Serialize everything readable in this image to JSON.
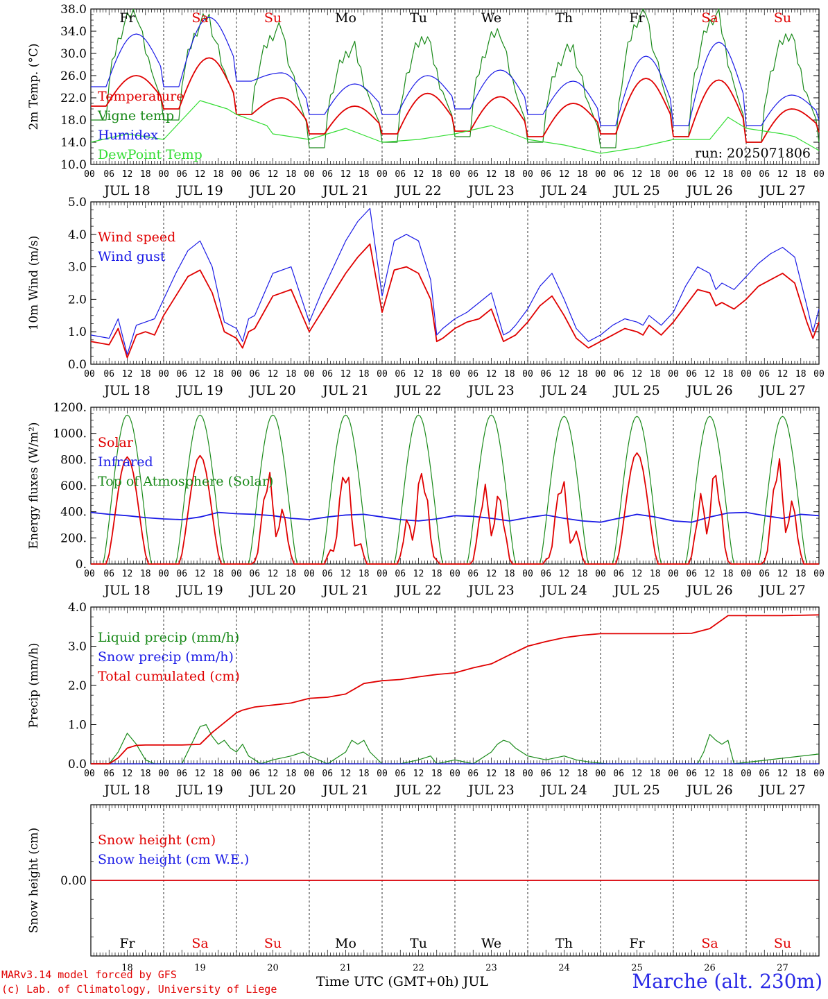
{
  "colors": {
    "red": "#e00000",
    "green": "#1a8a1a",
    "blue": "#1a1ae6",
    "lime": "#33dd33",
    "weekend": "#e00000",
    "weekday": "#000000",
    "frame": "#000000"
  },
  "days": [
    {
      "name": "Fr",
      "date": "JUL 18",
      "num": "18",
      "weekend": false
    },
    {
      "name": "Sa",
      "date": "JUL 19",
      "num": "19",
      "weekend": true
    },
    {
      "name": "Su",
      "date": "JUL 20",
      "num": "20",
      "weekend": true
    },
    {
      "name": "Mo",
      "date": "JUL 21",
      "num": "21",
      "weekend": false
    },
    {
      "name": "Tu",
      "date": "JUL 22",
      "num": "22",
      "weekend": false
    },
    {
      "name": "We",
      "date": "JUL 23",
      "num": "23",
      "weekend": false
    },
    {
      "name": "Th",
      "date": "JUL 24",
      "num": "24",
      "weekend": false
    },
    {
      "name": "Fr",
      "date": "JUL 25",
      "num": "25",
      "weekend": false
    },
    {
      "name": "Sa",
      "date": "JUL 26",
      "num": "26",
      "weekend": true
    },
    {
      "name": "Su",
      "date": "JUL 27",
      "num": "27",
      "weekend": true
    }
  ],
  "hour_labels": [
    "00",
    "06",
    "12",
    "18"
  ],
  "hour_label_last": "00",
  "footer": {
    "credit_line1": "MARv3.14 model forced by GFS",
    "credit_line2": "(c) Lab. of Climatology, University of Liege",
    "xaxis_title": "Time UTC (GMT+0h) JUL",
    "station": "Marche (alt. 230m)"
  },
  "chart_data": [
    {
      "type": "line",
      "ylabel": "2m Temp. (°C)",
      "yticks": [
        "38.0",
        "34.0",
        "30.0",
        "26.0",
        "22.0",
        "18.0",
        "14.0",
        "10.0"
      ],
      "ylim": [
        10,
        38
      ],
      "annotation": "run: 2025071806",
      "legend": [
        {
          "label": "Temperature",
          "color": "red"
        },
        {
          "label": "Vigne temp",
          "color": "green"
        },
        {
          "label": "Humidex",
          "color": "blue"
        },
        {
          "label": "DewPoint Temp",
          "color": "lime"
        }
      ],
      "series": [
        {
          "name": "Vigne temp",
          "color": "green",
          "kind": "daily",
          "profile": "sharp",
          "days": [
            [
              18,
              37.5
            ],
            [
              18,
              36.5
            ],
            [
              19,
              34.5
            ],
            [
              13,
              31
            ],
            [
              14,
              33
            ],
            [
              15,
              34
            ],
            [
              14,
              31
            ],
            [
              13,
              37.5
            ],
            [
              15,
              37
            ],
            [
              14,
              33.5
            ]
          ],
          "end": 14
        },
        {
          "name": "Humidex",
          "color": "blue",
          "kind": "daily",
          "profile": "smooth",
          "days": [
            [
              24,
              33.5
            ],
            [
              24,
              36.5
            ],
            [
              25,
              26.5
            ],
            [
              19,
              24.5
            ],
            [
              19,
              26
            ],
            [
              20,
              27
            ],
            [
              19,
              25
            ],
            [
              17,
              29.5
            ],
            [
              17,
              32
            ],
            [
              17,
              22.5
            ]
          ],
          "end": 18
        },
        {
          "name": "Temperature",
          "color": "red",
          "kind": "daily",
          "profile": "smooth",
          "days": [
            [
              20.5,
              26
            ],
            [
              20,
              29.2
            ],
            [
              19,
              22
            ],
            [
              15.5,
              20.5
            ],
            [
              15.5,
              22.8
            ],
            [
              16,
              22.2
            ],
            [
              15,
              21
            ],
            [
              15.5,
              25.5
            ],
            [
              15,
              25.2
            ],
            [
              14,
              20
            ]
          ],
          "end": 15.8
        },
        {
          "name": "DewPoint Temp",
          "color": "lime",
          "kind": "points",
          "x": [
            0,
            12,
            24,
            36,
            45,
            48,
            58,
            60,
            72,
            84,
            96,
            108,
            120,
            132,
            144,
            156,
            168,
            180,
            192,
            204,
            210,
            216,
            228,
            232,
            240
          ],
          "y": [
            14,
            15.5,
            14.5,
            21.5,
            20,
            19,
            17,
            15.5,
            14.5,
            16.5,
            14,
            14.5,
            15.5,
            17,
            14.5,
            13.5,
            12,
            13,
            14.5,
            14.5,
            18.5,
            16.5,
            15.5,
            15,
            12.5
          ]
        }
      ]
    },
    {
      "type": "line",
      "ylabel": "10m Wind (m/s)",
      "yticks": [
        "5.0",
        "4.0",
        "3.0",
        "2.0",
        "1.0",
        "0.0"
      ],
      "ylim": [
        0,
        5
      ],
      "legend": [
        {
          "label": "Wind speed",
          "color": "red"
        },
        {
          "label": "Wind gust",
          "color": "blue"
        }
      ],
      "series": [
        {
          "name": "Wind speed",
          "color": "red",
          "kind": "points",
          "x": [
            0,
            6,
            9,
            12,
            15,
            18,
            21,
            24,
            28,
            32,
            36,
            40,
            44,
            48,
            50,
            52,
            54,
            60,
            66,
            72,
            76,
            80,
            84,
            88,
            92,
            96,
            100,
            104,
            108,
            112,
            114,
            116,
            120,
            124,
            128,
            132,
            136,
            138,
            140,
            144,
            148,
            152,
            156,
            160,
            164,
            168,
            172,
            176,
            180,
            182,
            184,
            188,
            192,
            196,
            200,
            204,
            206,
            208,
            212,
            216,
            220,
            224,
            228,
            232,
            236,
            238,
            240
          ],
          "y": [
            0.7,
            0.6,
            1.1,
            0.2,
            0.9,
            1.0,
            0.9,
            1.5,
            2.1,
            2.7,
            2.9,
            2.2,
            1.0,
            0.8,
            0.5,
            1.0,
            1.1,
            2.1,
            2.3,
            1.0,
            1.6,
            2.2,
            2.8,
            3.3,
            3.7,
            1.6,
            2.9,
            3.0,
            2.8,
            2.0,
            0.7,
            0.8,
            1.1,
            1.3,
            1.4,
            1.7,
            0.7,
            0.8,
            0.9,
            1.3,
            1.8,
            2.1,
            1.5,
            0.8,
            0.5,
            0.7,
            0.9,
            1.1,
            1.0,
            0.9,
            1.2,
            0.9,
            1.3,
            1.8,
            2.3,
            2.2,
            1.8,
            1.9,
            1.7,
            2.0,
            2.4,
            2.6,
            2.8,
            2.5,
            1.3,
            0.8,
            1.3
          ]
        },
        {
          "name": "Wind gust",
          "color": "blue",
          "kind": "points",
          "x": [
            0,
            6,
            9,
            12,
            15,
            18,
            21,
            24,
            28,
            32,
            36,
            40,
            44,
            48,
            50,
            52,
            54,
            60,
            66,
            72,
            76,
            80,
            84,
            88,
            92,
            96,
            100,
            104,
            108,
            112,
            114,
            116,
            120,
            124,
            128,
            132,
            136,
            138,
            140,
            144,
            148,
            152,
            156,
            160,
            164,
            168,
            172,
            176,
            180,
            182,
            184,
            188,
            192,
            196,
            200,
            204,
            206,
            208,
            212,
            216,
            220,
            224,
            228,
            232,
            236,
            238,
            240
          ],
          "y": [
            0.9,
            0.8,
            1.4,
            0.3,
            1.2,
            1.3,
            1.4,
            2.0,
            2.8,
            3.5,
            3.8,
            3.0,
            1.3,
            1.1,
            0.7,
            1.4,
            1.5,
            2.8,
            3.0,
            1.3,
            2.2,
            3.0,
            3.8,
            4.4,
            4.8,
            2.1,
            3.8,
            4.0,
            3.8,
            2.6,
            0.9,
            1.1,
            1.4,
            1.6,
            1.9,
            2.2,
            0.9,
            1.0,
            1.2,
            1.7,
            2.4,
            2.8,
            2.0,
            1.1,
            0.7,
            0.9,
            1.2,
            1.4,
            1.3,
            1.2,
            1.5,
            1.2,
            1.6,
            2.4,
            3.0,
            2.8,
            2.3,
            2.5,
            2.3,
            2.7,
            3.1,
            3.4,
            3.6,
            3.3,
            1.8,
            1.0,
            1.7
          ]
        }
      ]
    },
    {
      "type": "line",
      "ylabel": "Energy fluxes (W/m²)",
      "yticks": [
        "1200.",
        "1000.",
        "800.",
        "600.",
        "400.",
        "200.",
        "0."
      ],
      "ylim": [
        0,
        1200
      ],
      "legend": [
        {
          "label": "Solar",
          "color": "red"
        },
        {
          "label": "Infrared",
          "color": "blue"
        },
        {
          "label": "Top of Atmosphere (Solar)",
          "color": "green"
        }
      ],
      "series": [
        {
          "name": "Top of Atmosphere (Solar)",
          "color": "green",
          "kind": "solar",
          "peaks": [
            1140,
            1140,
            1140,
            1140,
            1140,
            1140,
            1130,
            1130,
            1130,
            1130
          ]
        },
        {
          "name": "Infrared",
          "color": "blue",
          "kind": "points",
          "x": [
            0,
            6,
            12,
            18,
            24,
            30,
            36,
            42,
            48,
            54,
            60,
            66,
            72,
            78,
            84,
            90,
            96,
            102,
            108,
            114,
            120,
            126,
            132,
            138,
            144,
            150,
            156,
            162,
            168,
            174,
            180,
            186,
            192,
            198,
            204,
            210,
            216,
            222,
            228,
            234,
            240
          ],
          "y": [
            395,
            380,
            370,
            355,
            345,
            340,
            360,
            395,
            385,
            380,
            370,
            350,
            340,
            360,
            375,
            380,
            360,
            340,
            330,
            345,
            370,
            365,
            350,
            330,
            355,
            375,
            350,
            330,
            320,
            350,
            380,
            360,
            330,
            320,
            360,
            390,
            395,
            370,
            350,
            380,
            370
          ]
        },
        {
          "name": "Solar",
          "color": "red",
          "kind": "daily_solar",
          "peaks": [
            820,
            830,
            730,
            690,
            720,
            720,
            630,
            850,
            800,
            840
          ],
          "jag": [
            0,
            0,
            1,
            1,
            1,
            1,
            1,
            0,
            1,
            1
          ]
        }
      ]
    },
    {
      "type": "line",
      "ylabel": "Precip (mm/h)",
      "yticks": [
        "4.0",
        "3.0",
        "2.0",
        "1.0",
        "0.0"
      ],
      "ylim": [
        0,
        4
      ],
      "legend": [
        {
          "label": "Liquid precip (mm/h)",
          "color": "green"
        },
        {
          "label": "Snow precip (mm/h)",
          "color": "blue"
        },
        {
          "label": "Total cumulated (cm)",
          "color": "red"
        }
      ],
      "series": [
        {
          "name": "Liquid precip (mm/h)",
          "color": "green",
          "kind": "points",
          "x": [
            0,
            6,
            9,
            12,
            15,
            18,
            21,
            24,
            30,
            36,
            38,
            40,
            42,
            44,
            46,
            48,
            50,
            52,
            54,
            56,
            60,
            66,
            70,
            72,
            78,
            84,
            86,
            88,
            90,
            92,
            96,
            102,
            108,
            112,
            114,
            120,
            126,
            132,
            134,
            136,
            138,
            140,
            144,
            150,
            156,
            160,
            164,
            170,
            192,
            200,
            202,
            204,
            206,
            208,
            210,
            212,
            240
          ],
          "y": [
            0,
            0,
            0.3,
            0.78,
            0.5,
            0.1,
            0,
            0,
            0,
            0.95,
            1.0,
            0.7,
            0.5,
            0.6,
            0.4,
            0.3,
            0.5,
            0.2,
            0.1,
            0,
            0.1,
            0.2,
            0.3,
            0.2,
            0,
            0.3,
            0.6,
            0.5,
            0.6,
            0.3,
            0,
            0,
            0.1,
            0.2,
            0,
            0.1,
            0,
            0.3,
            0.5,
            0.6,
            0.55,
            0.4,
            0.2,
            0.1,
            0.2,
            0.1,
            0.05,
            0,
            0,
            0,
            0.3,
            0.75,
            0.6,
            0.5,
            0.6,
            0,
            0.25
          ]
        },
        {
          "name": "Snow precip (mm/h)",
          "color": "blue",
          "kind": "points",
          "x": [
            0,
            240
          ],
          "y": [
            0,
            0
          ]
        },
        {
          "name": "Total cumulated (cm)",
          "color": "red",
          "kind": "points",
          "x": [
            0,
            6,
            9,
            12,
            15,
            18,
            24,
            30,
            36,
            40,
            44,
            48,
            50,
            54,
            60,
            66,
            72,
            78,
            84,
            90,
            96,
            102,
            108,
            114,
            120,
            126,
            132,
            138,
            144,
            150,
            156,
            162,
            168,
            174,
            180,
            192,
            198,
            204,
            210,
            216,
            228,
            240
          ],
          "y": [
            0,
            0,
            0.15,
            0.4,
            0.47,
            0.48,
            0.48,
            0.48,
            0.5,
            0.8,
            1.05,
            1.3,
            1.37,
            1.45,
            1.5,
            1.55,
            1.67,
            1.7,
            1.78,
            2.05,
            2.12,
            2.15,
            2.22,
            2.28,
            2.32,
            2.45,
            2.55,
            2.78,
            3.0,
            3.12,
            3.22,
            3.28,
            3.32,
            3.32,
            3.32,
            3.32,
            3.33,
            3.45,
            3.78,
            3.78,
            3.78,
            3.8
          ]
        }
      ]
    },
    {
      "type": "line",
      "ylabel": "Snow height (cm)",
      "yticks": [
        "0.00"
      ],
      "ylim": [
        -1,
        1
      ],
      "legend": [
        {
          "label": "Snow height (cm)",
          "color": "red"
        },
        {
          "label": "Snow height (cm W.E.)",
          "color": "blue"
        }
      ],
      "series": [
        {
          "name": "Snow height (cm W.E.)",
          "color": "blue",
          "kind": "points",
          "x": [
            0,
            240
          ],
          "y": [
            0,
            0
          ]
        },
        {
          "name": "Snow height (cm)",
          "color": "red",
          "kind": "points",
          "x": [
            0,
            240
          ],
          "y": [
            0,
            0
          ]
        }
      ]
    }
  ]
}
